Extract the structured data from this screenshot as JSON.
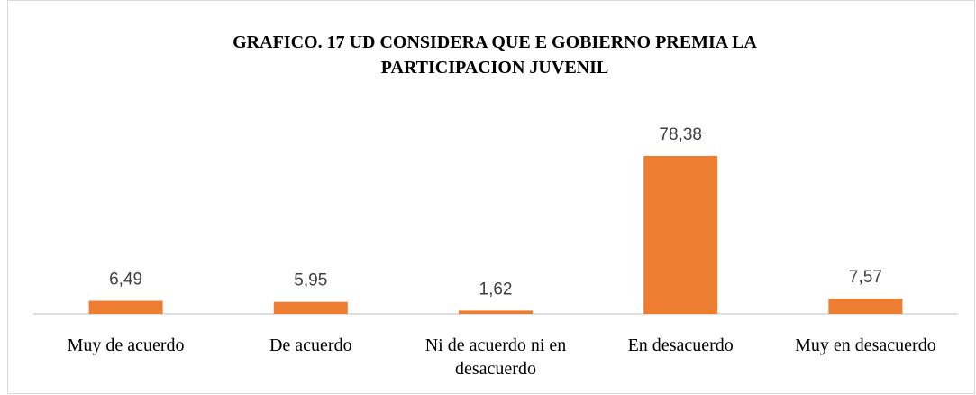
{
  "chart_data": {
    "type": "bar",
    "title": "GRAFICO. 17 UD CONSIDERA QUE E GOBIERNO PREMIA LA PARTICIPACION JUVENIL",
    "categories": [
      "Muy de acuerdo",
      "De acuerdo",
      "Ni de acuerdo ni en desacuerdo",
      "En desacuerdo",
      "Muy en desacuerdo"
    ],
    "values": [
      6.49,
      5.95,
      1.62,
      78.38,
      7.57
    ],
    "value_labels": [
      "6,49",
      "5,95",
      "1,62",
      "78,38",
      "7,57"
    ],
    "color": "#ed7d31"
  }
}
